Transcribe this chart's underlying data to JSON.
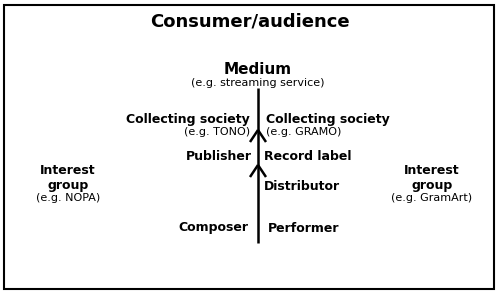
{
  "title": "Consumer/audience",
  "medium_label": "Medium",
  "medium_sub": "(e.g. streaming service)",
  "cs_left_label": "Collecting society",
  "cs_left_sub": "(e.g. TONO)",
  "cs_right_label": "Collecting society",
  "cs_right_sub": "(e.g. GRAMO)",
  "publisher_label": "Publisher",
  "record_label": "Record label",
  "distributor_label": "Distributor",
  "composer_label": "Composer",
  "performer_label": "Performer",
  "ig_left_label": "Interest\ngroup",
  "ig_left_sub": "(e.g. NOPA)",
  "ig_right_label": "Interest\ngroup",
  "ig_right_sub": "(e.g. GramArt)",
  "bg_color": "#ffffff",
  "text_color": "#000000",
  "line_color": "#000000",
  "border_color": "#000000",
  "fig_width": 5.0,
  "fig_height": 2.93
}
